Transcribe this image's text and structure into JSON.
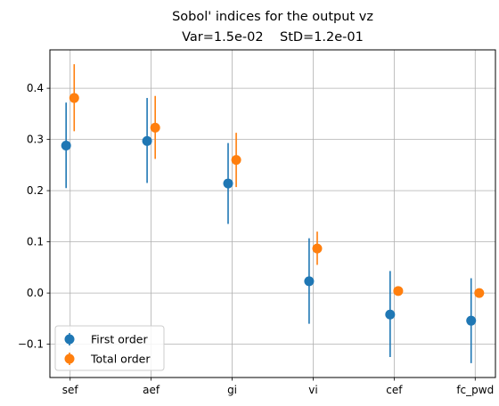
{
  "chart_data": {
    "type": "scatter",
    "title_line1": "Sobol' indices for the output vz",
    "title_line2": "Var=1.5e-02    StD=1.2e-01",
    "xlabel": "",
    "ylabel": "",
    "categories": [
      "sef",
      "aef",
      "gi",
      "vi",
      "cef",
      "fc_pwd"
    ],
    "ylim": [
      -0.165,
      0.475
    ],
    "yticks": [
      -0.1,
      0.0,
      0.1,
      0.2,
      0.3,
      0.4
    ],
    "ytick_labels": [
      "−0.1",
      "0.0",
      "0.1",
      "0.2",
      "0.3",
      "0.4"
    ],
    "grid": true,
    "legend_position": "lower-left",
    "series": [
      {
        "name": "First order",
        "color": "#1f77b4",
        "values": [
          0.288,
          0.297,
          0.214,
          0.023,
          -0.042,
          -0.054
        ],
        "err_low": [
          0.205,
          0.215,
          0.135,
          -0.06,
          -0.125,
          -0.137
        ],
        "err_high": [
          0.372,
          0.381,
          0.293,
          0.107,
          0.043,
          0.029
        ],
        "offset": -0.05
      },
      {
        "name": "Total order",
        "color": "#ff7f0e",
        "values": [
          0.381,
          0.323,
          0.26,
          0.087,
          0.004,
          0.0
        ],
        "err_low": [
          0.316,
          0.262,
          0.207,
          0.055,
          -0.005,
          -0.005
        ],
        "err_high": [
          0.447,
          0.385,
          0.313,
          0.12,
          0.012,
          0.005
        ],
        "offset": 0.05
      }
    ]
  }
}
